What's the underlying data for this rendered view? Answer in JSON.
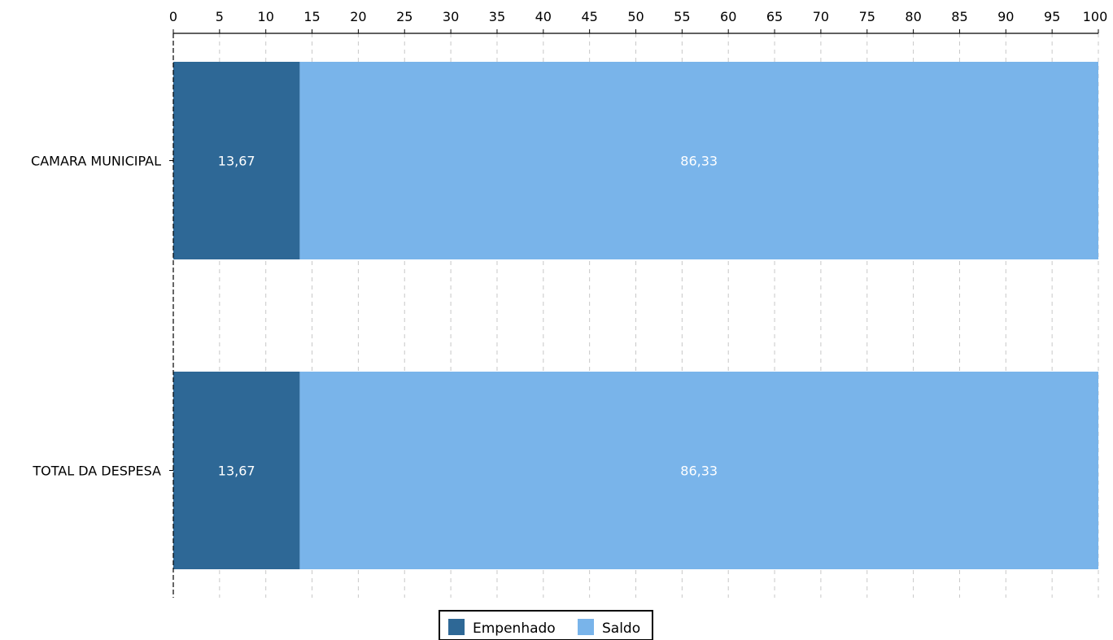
{
  "chart_data": {
    "type": "bar",
    "orientation": "horizontal",
    "stacked": true,
    "categories": [
      "CAMARA MUNICIPAL",
      "TOTAL DA DESPESA"
    ],
    "series": [
      {
        "name": "Empenhado",
        "values": [
          13.67,
          13.67
        ],
        "labels": [
          "13,67",
          "13,67"
        ],
        "color": "#2e6896"
      },
      {
        "name": "Saldo",
        "values": [
          86.33,
          86.33
        ],
        "labels": [
          "86,33",
          "86,33"
        ],
        "color": "#79b4ea"
      }
    ],
    "xlim": [
      0,
      100
    ],
    "xticks": [
      0,
      5,
      10,
      15,
      20,
      25,
      30,
      35,
      40,
      45,
      50,
      55,
      60,
      65,
      70,
      75,
      80,
      85,
      90,
      95,
      100
    ],
    "xaxis_position": "top",
    "grid": "vertical-dashed",
    "legend": {
      "placement": "bottom-center",
      "entries": [
        "Empenhado",
        "Saldo"
      ]
    },
    "colors": {
      "grid": "#c8c8c8",
      "axis": "#000000",
      "label_on_bar": "#ffffff"
    }
  }
}
